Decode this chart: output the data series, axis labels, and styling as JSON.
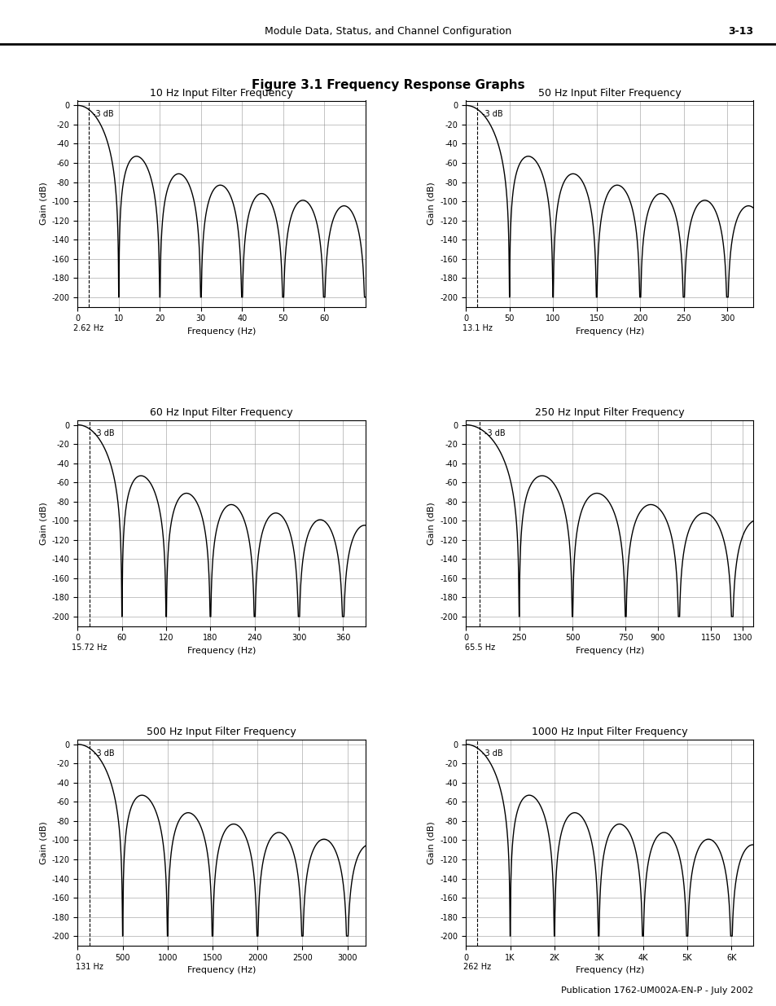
{
  "title": "Figure 3.1 Frequency Response Graphs",
  "header_text": "Module Data, Status, and Channel Configuration",
  "header_right": "3-13",
  "footer_text": "Publication 1762-UM002A-EN-P - July 2002",
  "subplots": [
    {
      "title": "10 Hz Input Filter Frequency",
      "filter_freq": 10,
      "xmax": 70,
      "xticks": [
        0,
        10,
        20,
        30,
        40,
        50,
        60
      ],
      "xlabel": "Frequency (Hz)",
      "cutoff_label": "2.62 Hz",
      "three_db_x": 2.62
    },
    {
      "title": "50 Hz Input Filter Frequency",
      "filter_freq": 50,
      "xmax": 330,
      "xticks": [
        0,
        50,
        100,
        150,
        200,
        250,
        300
      ],
      "xlabel": "Frequency (Hz)",
      "cutoff_label": "13.1 Hz",
      "three_db_x": 13.1
    },
    {
      "title": "60 Hz Input Filter Frequency",
      "filter_freq": 60,
      "xmax": 390,
      "xticks": [
        0,
        60,
        120,
        180,
        240,
        300,
        360
      ],
      "xlabel": "Frequency (Hz)",
      "cutoff_label": "15.72 Hz",
      "three_db_x": 15.72
    },
    {
      "title": "250 Hz Input Filter Frequency",
      "filter_freq": 250,
      "xmax": 1350,
      "xticks": [
        0,
        250,
        500,
        750,
        900,
        1150,
        1300
      ],
      "xlabel": "Frequency (Hz)",
      "cutoff_label": "65.5 Hz",
      "three_db_x": 65.5
    },
    {
      "title": "500 Hz Input Filter Frequency",
      "filter_freq": 500,
      "xmax": 3200,
      "xticks": [
        0,
        500,
        1000,
        1500,
        2000,
        2500,
        3000
      ],
      "xlabel": "Frequency (Hz)",
      "cutoff_label": "131 Hz",
      "three_db_x": 131
    },
    {
      "title": "1000 Hz Input Filter Frequency",
      "filter_freq": 1000,
      "xmax": 6500,
      "xticks_labels": [
        "0",
        "1K",
        "2K",
        "3K",
        "4K",
        "5K",
        "6K"
      ],
      "xticks": [
        0,
        1000,
        2000,
        3000,
        4000,
        5000,
        6000
      ],
      "xlabel": "Frequency (Hz)",
      "cutoff_label": "262 Hz",
      "three_db_x": 262
    }
  ],
  "yticks": [
    0,
    -20,
    -40,
    -60,
    -80,
    -100,
    -120,
    -140,
    -160,
    -180,
    -200
  ],
  "ylim": [
    -210,
    5
  ],
  "ylabel": "Gain (dB)",
  "bg_color": "#ffffff",
  "line_color": "#000000",
  "grid_color": "#888888"
}
